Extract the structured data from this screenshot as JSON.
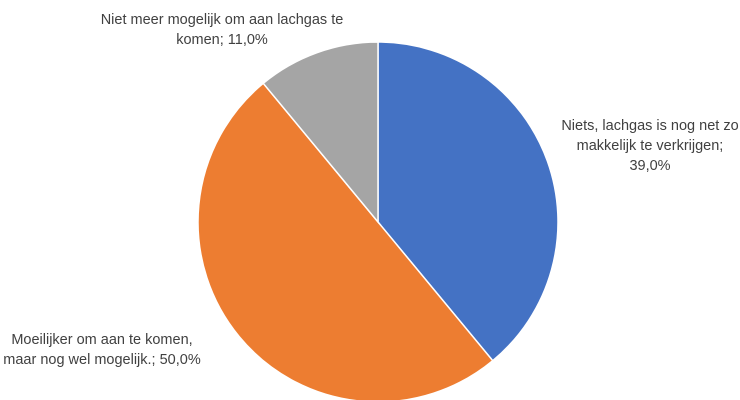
{
  "chart_data": {
    "type": "pie",
    "title": "",
    "slices": [
      {
        "label": "Niets, lachgas is nog net zo makkelijk te verkrijgen",
        "value": 39.0,
        "display": "Niets, lachgas is nog net zo makkelijk te verkrijgen; 39,0%",
        "color": "#4472C4"
      },
      {
        "label": "Moeilijker om aan te komen, maar nog wel mogelijk.",
        "value": 50.0,
        "display": "Moeilijker om aan te komen, maar nog wel mogelijk.; 50,0%",
        "color": "#ED7D31"
      },
      {
        "label": "Niet meer mogelijk om aan lachgas te komen",
        "value": 11.0,
        "display": "Niet meer mogelijk om aan lachgas te komen; 11,0%",
        "color": "#A5A5A5"
      }
    ],
    "start_angle": "12 o'clock",
    "direction": "clockwise",
    "legend": "none",
    "data_labels": "category name and percentage, outside"
  }
}
